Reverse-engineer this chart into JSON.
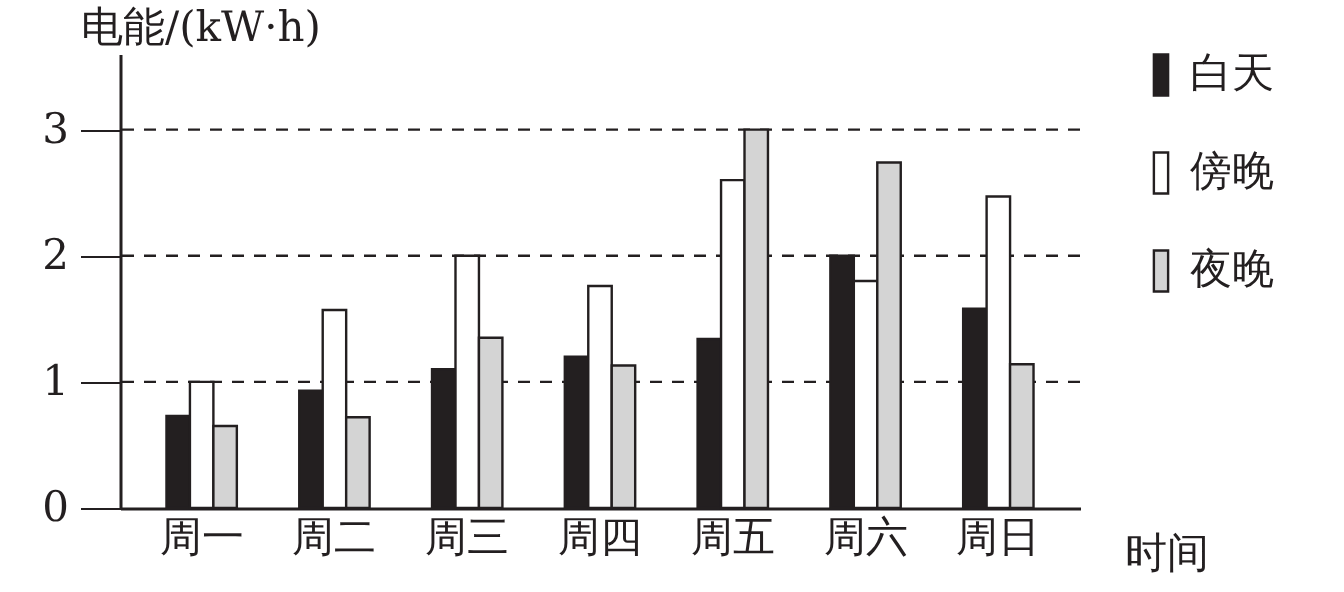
{
  "chart_data": {
    "type": "bar",
    "xlabel": "时间",
    "ylabel": "电能/(kW·h)",
    "categories": [
      "周一",
      "周二",
      "周三",
      "周四",
      "周五",
      "周六",
      "周日"
    ],
    "series": [
      {
        "name": "白天",
        "color": "#231f20",
        "values": [
          0.73,
          0.93,
          1.1,
          1.2,
          1.34,
          2.0,
          1.58
        ]
      },
      {
        "name": "傍晚",
        "color": "#ffffff",
        "values": [
          1.0,
          1.57,
          2.0,
          1.76,
          2.6,
          1.8,
          2.47
        ]
      },
      {
        "name": "夜晚",
        "color": "#d4d4d4",
        "values": [
          0.65,
          0.72,
          1.35,
          1.13,
          3.0,
          2.74,
          1.14
        ]
      }
    ],
    "ylim": [
      0,
      3.6
    ],
    "yticks": [
      0,
      1,
      2,
      3
    ],
    "grid": false,
    "legend": "right",
    "ref_lines": [
      {
        "axis": "y",
        "value": 1,
        "color": "#231f20",
        "line_style": "dashed"
      },
      {
        "axis": "y",
        "value": 2,
        "color": "#231f20",
        "line_style": "dashed"
      },
      {
        "axis": "y",
        "value": 3,
        "color": "#231f20",
        "line_style": "dashed"
      }
    ]
  }
}
